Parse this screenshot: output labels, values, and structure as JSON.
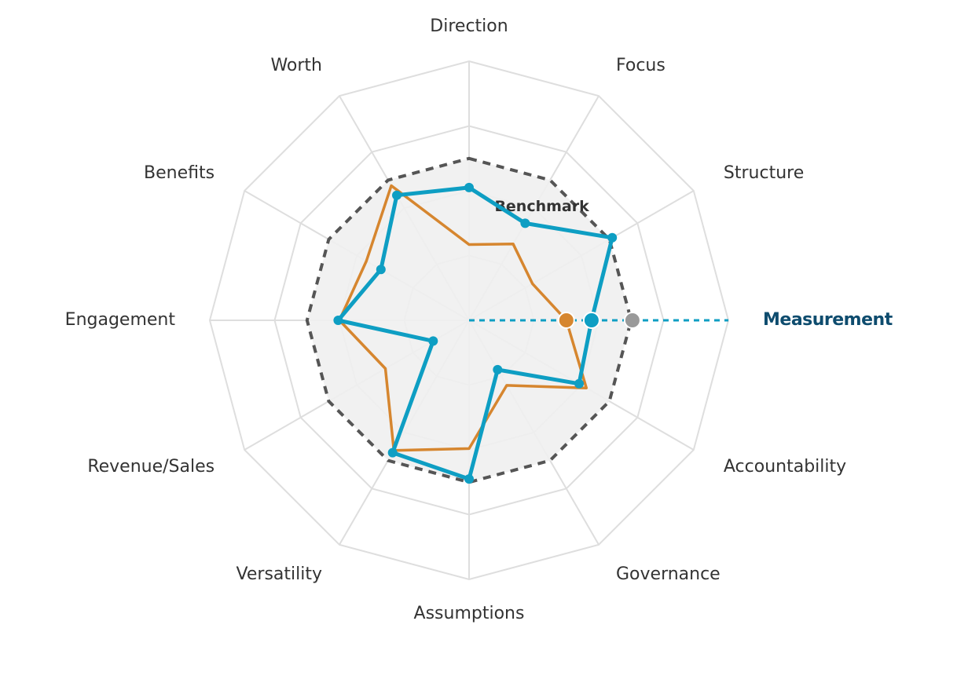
{
  "chart_data": {
    "type": "radar",
    "axes": [
      "Direction",
      "Focus",
      "Structure",
      "Measurement",
      "Accountability",
      "Governance",
      "Assumptions",
      "Versatility",
      "Revenue/Sales",
      "Engagement",
      "Benefits",
      "Worth"
    ],
    "highlighted_axis": "Measurement",
    "scale": {
      "min": 0,
      "max": 4,
      "rings": 4
    },
    "series": [
      {
        "values": [
          1.17,
          1.36,
          1.13,
          1.5,
          2.09,
          1.16,
          1.98,
          2.32,
          1.49,
          2.0,
          1.83,
          2.4
        ],
        "color": "#d6862f"
      },
      {
        "values": [
          2.05,
          1.73,
          2.55,
          1.89,
          1.96,
          0.88,
          2.45,
          2.36,
          0.64,
          2.02,
          1.57,
          2.23
        ],
        "color": "#0e9ec3"
      }
    ],
    "benchmark": {
      "label": "Benchmark",
      "values": [
        2.5,
        2.5,
        2.5,
        2.5,
        2.5,
        2.5,
        2.5,
        2.5,
        2.5,
        2.5,
        2.5,
        2.5
      ],
      "color": "#555555"
    },
    "highlight_markers": [
      {
        "value": 1.5,
        "color": "#d6862f"
      },
      {
        "value": 1.89,
        "color": "#0e9ec3"
      },
      {
        "value": 2.52,
        "color": "#999999"
      }
    ],
    "grid": true
  }
}
